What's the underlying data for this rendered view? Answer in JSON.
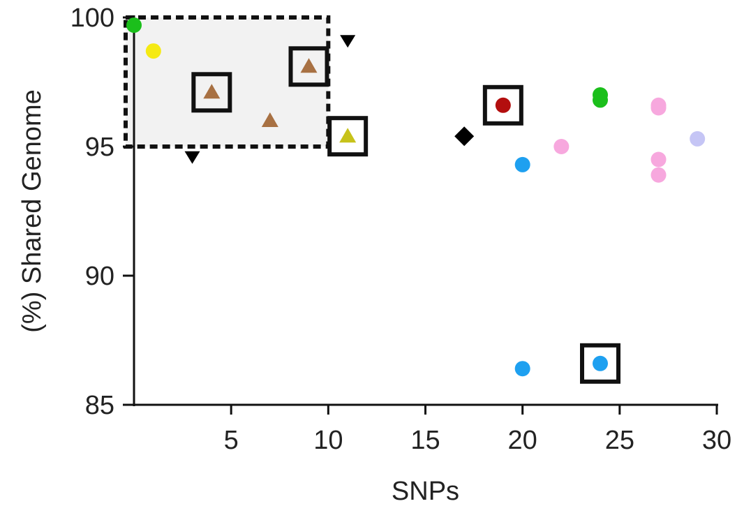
{
  "chart_data": {
    "type": "scatter",
    "title": "",
    "xlabel": "SNPs",
    "ylabel": "(%) Shared Genome",
    "xlim": [
      0,
      30
    ],
    "ylim": [
      85,
      100
    ],
    "xticks": [
      5,
      10,
      15,
      20,
      25,
      30
    ],
    "yticks": [
      85,
      90,
      95,
      100
    ],
    "grid": false,
    "highlight_region": {
      "x": [
        0,
        10
      ],
      "y": [
        95,
        100
      ],
      "fill": "#f2f2f2",
      "border": "dashed"
    },
    "points": [
      {
        "x": 0,
        "y": 99.7,
        "shape": "circle",
        "color": "#1bbf1b",
        "boxed": false
      },
      {
        "x": 1,
        "y": 98.7,
        "shape": "circle",
        "color": "#f5ea14",
        "boxed": false
      },
      {
        "x": 4,
        "y": 97.1,
        "shape": "triangle",
        "color": "#a87143",
        "boxed": true
      },
      {
        "x": 9,
        "y": 98.1,
        "shape": "triangle",
        "color": "#a87143",
        "boxed": true
      },
      {
        "x": 7,
        "y": 96.0,
        "shape": "triangle",
        "color": "#a87143",
        "boxed": false
      },
      {
        "x": 11,
        "y": 95.4,
        "shape": "triangle",
        "color": "#c7c21a",
        "boxed": true
      },
      {
        "x": 11,
        "y": 99.1,
        "shape": "triangle-down",
        "color": "#000000",
        "boxed": false
      },
      {
        "x": 3,
        "y": 94.6,
        "shape": "triangle-down",
        "color": "#000000",
        "boxed": false
      },
      {
        "x": 17,
        "y": 95.4,
        "shape": "diamond",
        "color": "#000000",
        "boxed": false
      },
      {
        "x": 19,
        "y": 96.6,
        "shape": "circle",
        "color": "#b30e0e",
        "boxed": true
      },
      {
        "x": 20,
        "y": 94.3,
        "shape": "circle",
        "color": "#1ea0f0",
        "boxed": false
      },
      {
        "x": 22,
        "y": 95.0,
        "shape": "circle",
        "color": "#f7a8de",
        "boxed": false
      },
      {
        "x": 24,
        "y": 97.0,
        "shape": "circle",
        "color": "#1bbf1b",
        "boxed": false
      },
      {
        "x": 24,
        "y": 96.8,
        "shape": "circle",
        "color": "#1bbf1b",
        "boxed": false
      },
      {
        "x": 27,
        "y": 96.6,
        "shape": "circle",
        "color": "#f7a8de",
        "boxed": false
      },
      {
        "x": 27,
        "y": 96.5,
        "shape": "circle",
        "color": "#f7a8de",
        "boxed": false
      },
      {
        "x": 27,
        "y": 94.5,
        "shape": "circle",
        "color": "#f7a8de",
        "boxed": false
      },
      {
        "x": 27,
        "y": 93.9,
        "shape": "circle",
        "color": "#f7a8de",
        "boxed": false
      },
      {
        "x": 29,
        "y": 95.3,
        "shape": "circle",
        "color": "#c5c5f5",
        "boxed": false
      },
      {
        "x": 20,
        "y": 86.4,
        "shape": "circle",
        "color": "#1ea0f0",
        "boxed": false
      },
      {
        "x": 24,
        "y": 86.6,
        "shape": "circle",
        "color": "#1ea0f0",
        "boxed": true
      }
    ]
  }
}
